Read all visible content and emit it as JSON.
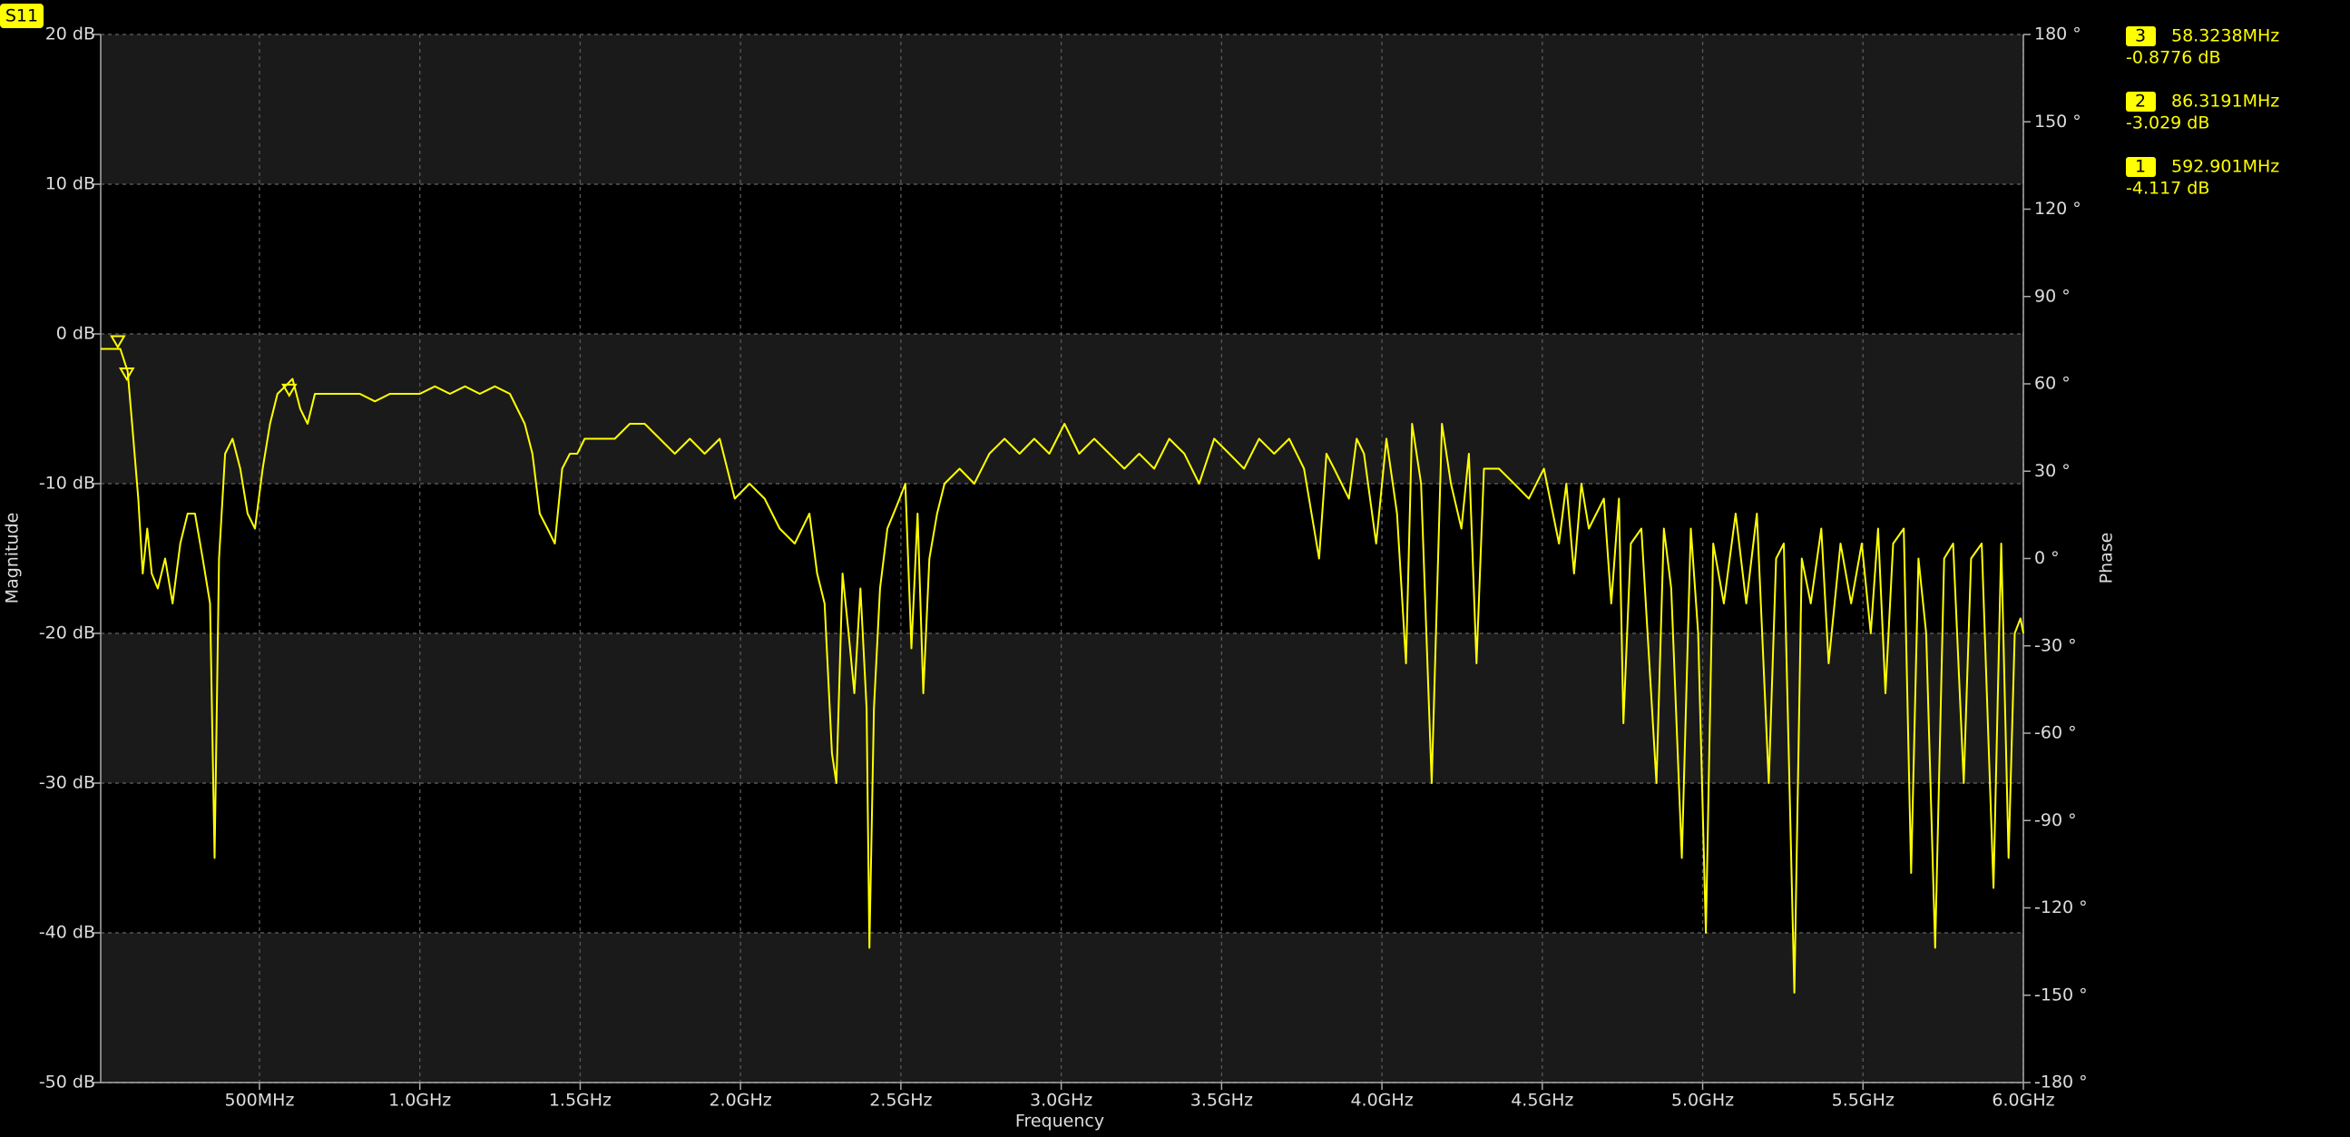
{
  "chart_data": {
    "type": "line",
    "title": "S11",
    "xlabel": "Frequency",
    "ylabel": "Magnitude",
    "y2label": "Phase",
    "xlim": [
      5,
      6000
    ],
    "ylim": [
      -50,
      20
    ],
    "y2lim": [
      -180,
      180
    ],
    "xticks": [
      {
        "value": 500,
        "label": "500MHz"
      },
      {
        "value": 1000,
        "label": "1.0GHz"
      },
      {
        "value": 1500,
        "label": "1.5GHz"
      },
      {
        "value": 2000,
        "label": "2.0GHz"
      },
      {
        "value": 2500,
        "label": "2.5GHz"
      },
      {
        "value": 3000,
        "label": "3.0GHz"
      },
      {
        "value": 3500,
        "label": "3.5GHz"
      },
      {
        "value": 4000,
        "label": "4.0GHz"
      },
      {
        "value": 4500,
        "label": "4.5GHz"
      },
      {
        "value": 5000,
        "label": "5.0GHz"
      },
      {
        "value": 5500,
        "label": "5.5GHz"
      },
      {
        "value": 6000,
        "label": "6.0GHz"
      }
    ],
    "yticks": [
      {
        "value": 20,
        "label": "20 dB"
      },
      {
        "value": 10,
        "label": "10 dB"
      },
      {
        "value": 0,
        "label": "0 dB"
      },
      {
        "value": -10,
        "label": "-10 dB"
      },
      {
        "value": -20,
        "label": "-20 dB"
      },
      {
        "value": -30,
        "label": "-30 dB"
      },
      {
        "value": -40,
        "label": "-40 dB"
      },
      {
        "value": -50,
        "label": "-50 dB"
      }
    ],
    "y2ticks": [
      {
        "value": 180,
        "label": "180 °"
      },
      {
        "value": 150,
        "label": "150 °"
      },
      {
        "value": 120,
        "label": "120 °"
      },
      {
        "value": 90,
        "label": "90 °"
      },
      {
        "value": 60,
        "label": "60 °"
      },
      {
        "value": 30,
        "label": "30 °"
      },
      {
        "value": 0,
        "label": "0 °"
      },
      {
        "value": -30,
        "label": "-30 °"
      },
      {
        "value": -60,
        "label": "-60 °"
      },
      {
        "value": -90,
        "label": "-90 °"
      },
      {
        "value": -120,
        "label": "-120 °"
      },
      {
        "value": -150,
        "label": "-150 °"
      },
      {
        "value": -180,
        "label": "-180 °"
      }
    ],
    "grid": true,
    "x": [
      5,
      19,
      42,
      66,
      89,
      103,
      122,
      136,
      150,
      164,
      183,
      206,
      229,
      253,
      276,
      299,
      323,
      346,
      360,
      374,
      393,
      416,
      440,
      463,
      486,
      510,
      533,
      556,
      580,
      603,
      627,
      650,
      673,
      720,
      767,
      813,
      860,
      907,
      954,
      1000,
      1047,
      1094,
      1141,
      1187,
      1234,
      1281,
      1327,
      1351,
      1374,
      1398,
      1421,
      1444,
      1468,
      1491,
      1514,
      1561,
      1608,
      1655,
      1701,
      1748,
      1795,
      1842,
      1888,
      1935,
      1982,
      2028,
      2075,
      2122,
      2169,
      2215,
      2239,
      2262,
      2285,
      2299,
      2318,
      2337,
      2355,
      2374,
      2393,
      2402,
      2416,
      2435,
      2458,
      2477,
      2496,
      2514,
      2533,
      2552,
      2570,
      2589,
      2613,
      2636,
      2683,
      2729,
      2776,
      2823,
      2870,
      2916,
      2963,
      3010,
      3056,
      3103,
      3150,
      3197,
      3243,
      3290,
      3337,
      3384,
      3430,
      3477,
      3524,
      3570,
      3617,
      3664,
      3711,
      3757,
      3804,
      3827,
      3851,
      3897,
      3921,
      3944,
      3982,
      4014,
      4047,
      4075,
      4094,
      4122,
      4155,
      4187,
      4215,
      4248,
      4271,
      4295,
      4318,
      4365,
      4412,
      4458,
      4505,
      4552,
      4575,
      4599,
      4622,
      4645,
      4692,
      4715,
      4739,
      4753,
      4776,
      4809,
      4856,
      4879,
      4902,
      4935,
      4963,
      4986,
      5010,
      5033,
      5066,
      5103,
      5136,
      5169,
      5206,
      5229,
      5253,
      5286,
      5309,
      5337,
      5370,
      5393,
      5430,
      5463,
      5496,
      5524,
      5547,
      5570,
      5594,
      5627,
      5650,
      5673,
      5697,
      5725,
      5753,
      5781,
      5814,
      5837,
      5870,
      5907,
      5931,
      5954,
      5973,
      5991,
      6000
    ],
    "series": [
      {
        "name": "S11",
        "color": "#ffff00",
        "values": [
          -1,
          -1,
          -1,
          -1,
          -2.5,
          -6,
          -11,
          -16,
          -13,
          -16,
          -17,
          -15,
          -18,
          -14,
          -12,
          -12,
          -15,
          -18,
          -35,
          -15,
          -8,
          -7,
          -9,
          -12,
          -13,
          -9,
          -6,
          -4,
          -3.5,
          -3,
          -5,
          -6,
          -4,
          -4,
          -4,
          -4,
          -4.5,
          -4,
          -4,
          -4,
          -3.5,
          -4,
          -3.5,
          -4,
          -3.5,
          -4,
          -6,
          -8,
          -12,
          -13,
          -14,
          -9,
          -8,
          -8,
          -7,
          -7,
          -7,
          -6,
          -6,
          -7,
          -8,
          -7,
          -8,
          -7,
          -11,
          -10,
          -11,
          -13,
          -14,
          -12,
          -16,
          -18,
          -28,
          -30,
          -16,
          -20,
          -24,
          -17,
          -25,
          -41,
          -25,
          -17,
          -13,
          -12,
          -11,
          -10,
          -21,
          -12,
          -24,
          -15,
          -12,
          -10,
          -9,
          -10,
          -8,
          -7,
          -8,
          -7,
          -8,
          -6,
          -8,
          -7,
          -8,
          -9,
          -8,
          -9,
          -7,
          -8,
          -10,
          -7,
          -8,
          -9,
          -7,
          -8,
          -7,
          -9,
          -15,
          -8,
          -9,
          -11,
          -7,
          -8,
          -14,
          -7,
          -12,
          -22,
          -6,
          -10,
          -30,
          -6,
          -10,
          -13,
          -8,
          -22,
          -9,
          -9,
          -10,
          -11,
          -9,
          -14,
          -10,
          -16,
          -10,
          -13,
          -11,
          -18,
          -11,
          -26,
          -14,
          -13,
          -30,
          -13,
          -17,
          -35,
          -13,
          -20,
          -40,
          -14,
          -18,
          -12,
          -18,
          -12,
          -30,
          -15,
          -14,
          -44,
          -15,
          -18,
          -13,
          -22,
          -14,
          -18,
          -14,
          -20,
          -13,
          -24,
          -14,
          -13,
          -36,
          -15,
          -20,
          -41,
          -15,
          -14,
          -30,
          -15,
          -14,
          -37,
          -14,
          -35,
          -20,
          -19,
          -20
        ]
      }
    ],
    "markers": [
      {
        "name": "3",
        "x": 58.3238,
        "x_label": "58.3238MHz",
        "y": -0.8776,
        "y_label": "-0.8776 dB"
      },
      {
        "name": "2",
        "x": 86.3191,
        "x_label": "86.3191MHz",
        "y": -3.029,
        "y_label": "-3.029 dB"
      },
      {
        "name": "1",
        "x": 592.901,
        "x_label": "592.901MHz",
        "y": -4.117,
        "y_label": "-4.117 dB"
      }
    ]
  }
}
